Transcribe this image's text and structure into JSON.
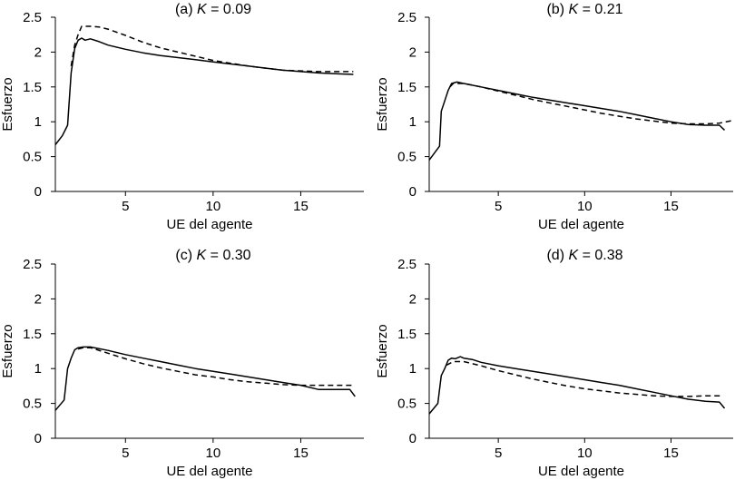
{
  "chart_data": [
    {
      "type": "line",
      "title_prefix": "(a) ",
      "title_var": "K",
      "title_suffix": " = 0.09",
      "xlabel": "UE del agente",
      "ylabel": "Esfuerzo",
      "xlim": [
        1,
        18.6
      ],
      "ylim": [
        0,
        2.5
      ],
      "xticks": [
        5,
        10,
        15
      ],
      "yticks": [
        0,
        0.5,
        1,
        1.5,
        2,
        2.5
      ],
      "grid": false,
      "series": [
        {
          "style": "solid",
          "points": [
            [
              1,
              0.67
            ],
            [
              1.4,
              0.8
            ],
            [
              1.7,
              0.95
            ],
            [
              1.9,
              1.7
            ],
            [
              2.1,
              2.05
            ],
            [
              2.3,
              2.17
            ],
            [
              2.5,
              2.2
            ],
            [
              2.7,
              2.17
            ],
            [
              3,
              2.19
            ],
            [
              3.5,
              2.15
            ],
            [
              4,
              2.1
            ],
            [
              5,
              2.04
            ],
            [
              6,
              1.99
            ],
            [
              7,
              1.95
            ],
            [
              8,
              1.92
            ],
            [
              9,
              1.89
            ],
            [
              10,
              1.86
            ],
            [
              11,
              1.83
            ],
            [
              12,
              1.8
            ],
            [
              13,
              1.77
            ],
            [
              14,
              1.74
            ],
            [
              15,
              1.72
            ],
            [
              16,
              1.7
            ],
            [
              17,
              1.69
            ],
            [
              18,
              1.68
            ]
          ]
        },
        {
          "style": "dashed",
          "points": [
            [
              1.9,
              1.8
            ],
            [
              2.1,
              2.1
            ],
            [
              2.3,
              2.25
            ],
            [
              2.5,
              2.37
            ],
            [
              3,
              2.37
            ],
            [
              3.5,
              2.36
            ],
            [
              4,
              2.33
            ],
            [
              5,
              2.24
            ],
            [
              6,
              2.14
            ],
            [
              7,
              2.06
            ],
            [
              8,
              2.0
            ],
            [
              9,
              1.94
            ],
            [
              10,
              1.88
            ],
            [
              11,
              1.84
            ],
            [
              12,
              1.8
            ],
            [
              13,
              1.77
            ],
            [
              14,
              1.74
            ],
            [
              15,
              1.73
            ],
            [
              16,
              1.72
            ],
            [
              17,
              1.72
            ],
            [
              18,
              1.72
            ]
          ]
        }
      ]
    },
    {
      "type": "line",
      "title_prefix": "(b) ",
      "title_var": "K",
      "title_suffix": " = 0.21",
      "xlabel": "UE del agente",
      "ylabel": "Esfuerzo",
      "xlim": [
        1,
        18.6
      ],
      "ylim": [
        0,
        2.5
      ],
      "xticks": [
        5,
        10,
        15
      ],
      "yticks": [
        0,
        0.5,
        1,
        1.5,
        2,
        2.5
      ],
      "grid": false,
      "series": [
        {
          "style": "solid",
          "points": [
            [
              1,
              0.45
            ],
            [
              1.6,
              0.65
            ],
            [
              1.7,
              1.15
            ],
            [
              1.9,
              1.3
            ],
            [
              2.1,
              1.45
            ],
            [
              2.3,
              1.55
            ],
            [
              2.6,
              1.57
            ],
            [
              3,
              1.55
            ],
            [
              4,
              1.5
            ],
            [
              5,
              1.45
            ],
            [
              6,
              1.4
            ],
            [
              7,
              1.35
            ],
            [
              8,
              1.31
            ],
            [
              9,
              1.27
            ],
            [
              10,
              1.23
            ],
            [
              11,
              1.19
            ],
            [
              12,
              1.15
            ],
            [
              13,
              1.1
            ],
            [
              14,
              1.05
            ],
            [
              15,
              1.0
            ],
            [
              16,
              0.96
            ],
            [
              17,
              0.95
            ],
            [
              17.8,
              0.95
            ],
            [
              18.1,
              0.88
            ]
          ]
        },
        {
          "style": "dashed",
          "points": [
            [
              2.2,
              1.5
            ],
            [
              2.4,
              1.55
            ],
            [
              3,
              1.55
            ],
            [
              4,
              1.5
            ],
            [
              5,
              1.44
            ],
            [
              6,
              1.38
            ],
            [
              7,
              1.32
            ],
            [
              8,
              1.27
            ],
            [
              9,
              1.22
            ],
            [
              10,
              1.17
            ],
            [
              11,
              1.12
            ],
            [
              12,
              1.08
            ],
            [
              13,
              1.04
            ],
            [
              14,
              1.01
            ],
            [
              15,
              0.98
            ],
            [
              16,
              0.97
            ],
            [
              17,
              0.97
            ],
            [
              17.8,
              0.98
            ],
            [
              18.6,
              1.02
            ]
          ]
        }
      ]
    },
    {
      "type": "line",
      "title_prefix": "(c) ",
      "title_var": "K",
      "title_suffix": " = 0.30",
      "xlabel": "UE del agente",
      "ylabel": "Esfuerzo",
      "xlim": [
        1,
        18.6
      ],
      "ylim": [
        0,
        2.5
      ],
      "xticks": [
        5,
        10,
        15
      ],
      "yticks": [
        0,
        0.5,
        1,
        1.5,
        2,
        2.5
      ],
      "grid": false,
      "series": [
        {
          "style": "solid",
          "points": [
            [
              1,
              0.4
            ],
            [
              1.5,
              0.55
            ],
            [
              1.7,
              1.0
            ],
            [
              1.9,
              1.15
            ],
            [
              2.1,
              1.27
            ],
            [
              2.3,
              1.3
            ],
            [
              2.6,
              1.31
            ],
            [
              3,
              1.31
            ],
            [
              4,
              1.26
            ],
            [
              5,
              1.2
            ],
            [
              6,
              1.15
            ],
            [
              7,
              1.1
            ],
            [
              8,
              1.05
            ],
            [
              9,
              1.0
            ],
            [
              10,
              0.96
            ],
            [
              11,
              0.92
            ],
            [
              12,
              0.88
            ],
            [
              13,
              0.84
            ],
            [
              14,
              0.8
            ],
            [
              15,
              0.76
            ],
            [
              16,
              0.7
            ],
            [
              17,
              0.7
            ],
            [
              17.8,
              0.7
            ],
            [
              18.1,
              0.6
            ]
          ]
        },
        {
          "style": "dashed",
          "points": [
            [
              2.3,
              1.28
            ],
            [
              2.6,
              1.3
            ],
            [
              3,
              1.3
            ],
            [
              4,
              1.22
            ],
            [
              5,
              1.14
            ],
            [
              6,
              1.07
            ],
            [
              7,
              1.01
            ],
            [
              8,
              0.96
            ],
            [
              9,
              0.91
            ],
            [
              10,
              0.88
            ],
            [
              11,
              0.84
            ],
            [
              12,
              0.81
            ],
            [
              13,
              0.79
            ],
            [
              14,
              0.77
            ],
            [
              15,
              0.76
            ],
            [
              16,
              0.76
            ],
            [
              17,
              0.76
            ],
            [
              18,
              0.76
            ]
          ]
        }
      ]
    },
    {
      "type": "line",
      "title_prefix": "(d) ",
      "title_var": "K",
      "title_suffix": " = 0.38",
      "xlabel": "UE del agente",
      "ylabel": "Esfuerzo",
      "xlim": [
        1,
        18.6
      ],
      "ylim": [
        0,
        2.5
      ],
      "xticks": [
        5,
        10,
        15
      ],
      "yticks": [
        0,
        0.5,
        1,
        1.5,
        2,
        2.5
      ],
      "grid": false,
      "series": [
        {
          "style": "solid",
          "points": [
            [
              1,
              0.35
            ],
            [
              1.5,
              0.5
            ],
            [
              1.7,
              0.9
            ],
            [
              1.9,
              1.0
            ],
            [
              2.1,
              1.12
            ],
            [
              2.3,
              1.15
            ],
            [
              2.5,
              1.14
            ],
            [
              2.8,
              1.17
            ],
            [
              3,
              1.15
            ],
            [
              3.5,
              1.13
            ],
            [
              4,
              1.09
            ],
            [
              5,
              1.04
            ],
            [
              6,
              1.0
            ],
            [
              7,
              0.96
            ],
            [
              8,
              0.92
            ],
            [
              9,
              0.88
            ],
            [
              10,
              0.84
            ],
            [
              11,
              0.8
            ],
            [
              12,
              0.76
            ],
            [
              13,
              0.71
            ],
            [
              14,
              0.66
            ],
            [
              15,
              0.61
            ],
            [
              16,
              0.56
            ],
            [
              17,
              0.53
            ],
            [
              17.8,
              0.52
            ],
            [
              18.1,
              0.43
            ]
          ]
        },
        {
          "style": "dashed",
          "points": [
            [
              2.0,
              1.05
            ],
            [
              2.4,
              1.1
            ],
            [
              3,
              1.1
            ],
            [
              4,
              1.04
            ],
            [
              5,
              0.97
            ],
            [
              6,
              0.91
            ],
            [
              7,
              0.85
            ],
            [
              8,
              0.8
            ],
            [
              9,
              0.75
            ],
            [
              10,
              0.71
            ],
            [
              11,
              0.68
            ],
            [
              12,
              0.65
            ],
            [
              13,
              0.63
            ],
            [
              14,
              0.61
            ],
            [
              15,
              0.6
            ],
            [
              16,
              0.6
            ],
            [
              17,
              0.61
            ],
            [
              18,
              0.61
            ]
          ]
        }
      ]
    }
  ]
}
